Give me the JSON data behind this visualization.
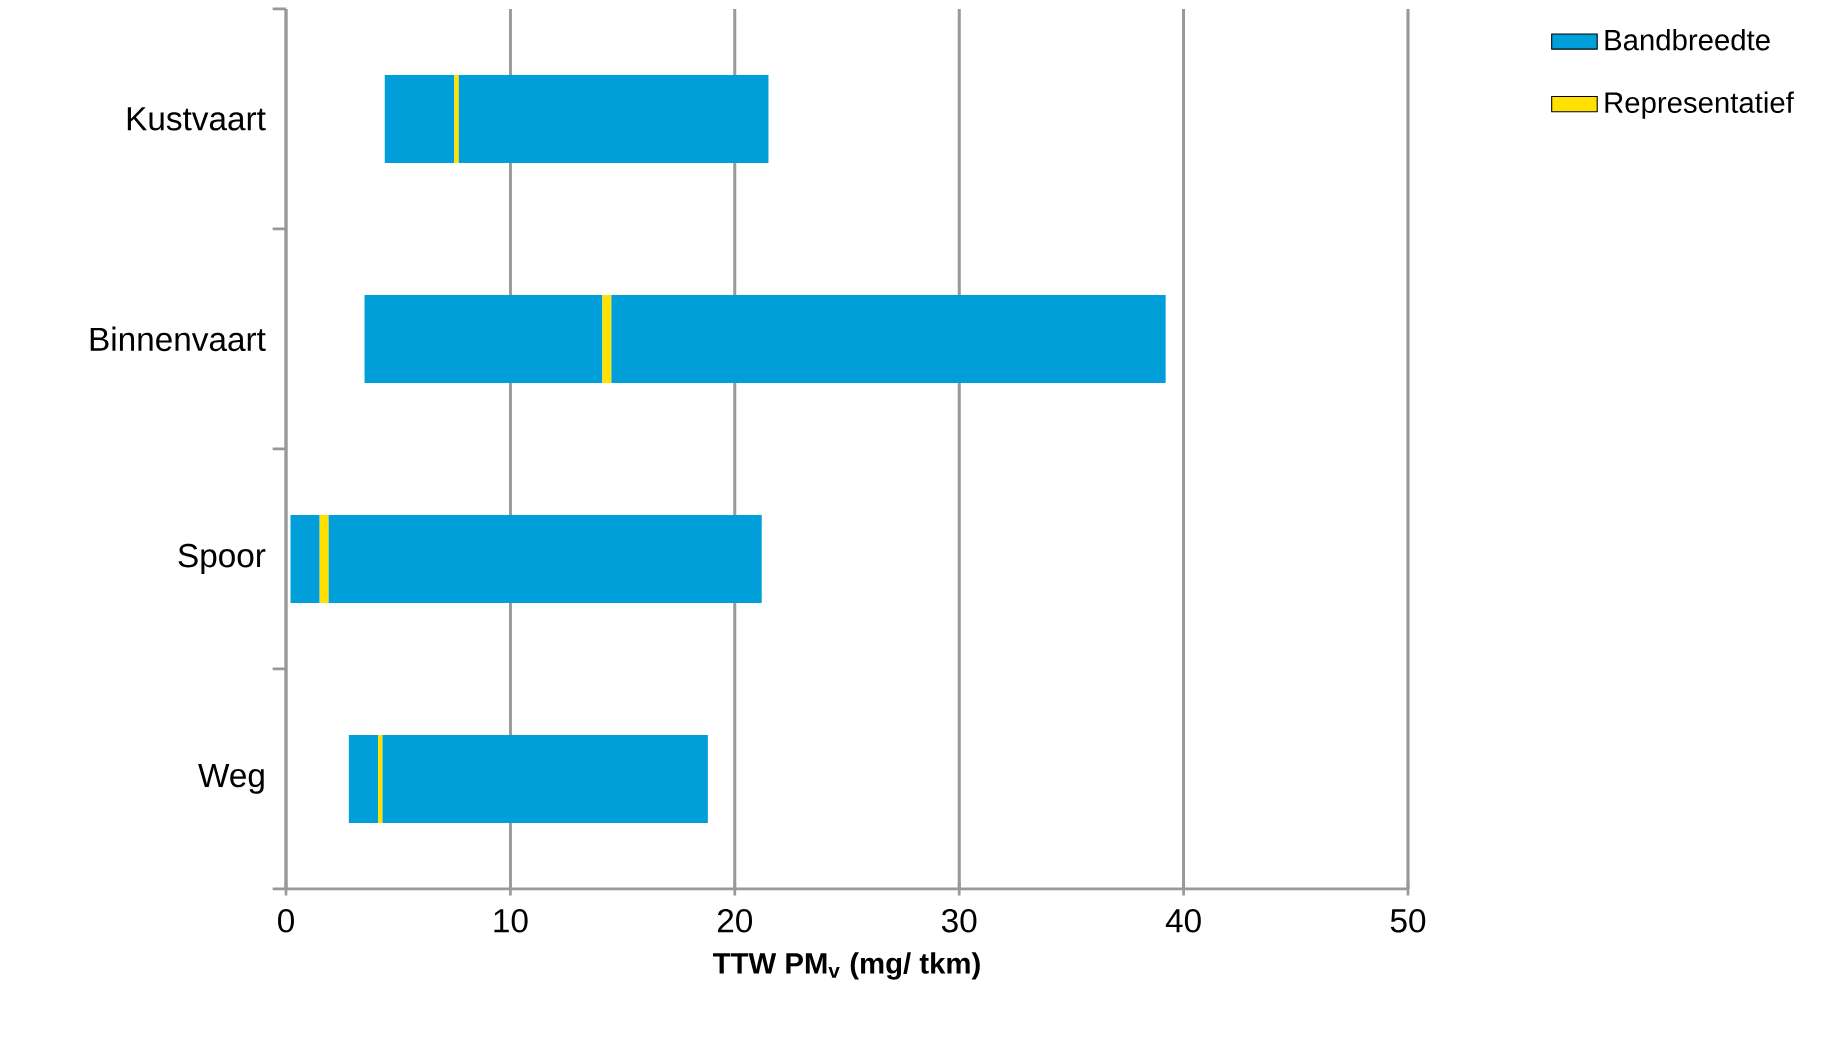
{
  "chart_data": {
    "type": "bar",
    "orientation": "horizontal",
    "xlabel": "TTW PM$_{v}$ (mg/ tkm)",
    "categories": [
      "Kustvaart",
      "Binnenvaart",
      "Spoor",
      "Weg"
    ],
    "series": [
      {
        "name": "Bandbreedte",
        "color": "#009fd9",
        "base": [
          4.4,
          3.5,
          0.2,
          2.8
        ],
        "values": [
          3.1,
          10.6,
          1.3,
          1.3
        ]
      },
      {
        "name": "Representatief",
        "color": "#ffe000",
        "base": [
          7.5,
          14.1,
          1.5,
          4.1
        ],
        "values": [
          0.2,
          0.4,
          0.4,
          0.2
        ]
      },
      {
        "color": "#009fd9",
        "base": [
          7.7,
          14.5,
          1.9,
          4.3
        ],
        "values": [
          13.8,
          24.7,
          19.3,
          14.5
        ]
      }
    ],
    "xlim": [
      0,
      50
    ],
    "xticks": [
      0,
      10,
      20,
      30,
      40,
      50
    ],
    "grid": "x",
    "legend": "top right"
  }
}
